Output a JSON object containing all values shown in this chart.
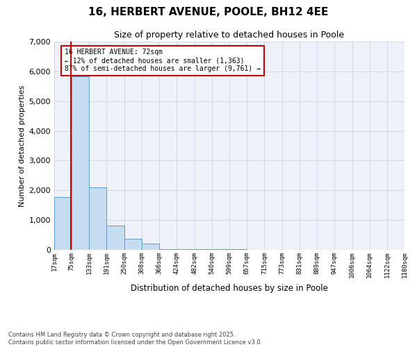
{
  "title": "16, HERBERT AVENUE, POOLE, BH12 4EE",
  "subtitle": "Size of property relative to detached houses in Poole",
  "xlabel": "Distribution of detached houses by size in Poole",
  "ylabel": "Number of detached properties",
  "property_size": 72,
  "annotation_title": "16 HERBERT AVENUE: 72sqm",
  "annotation_line1": "← 12% of detached houses are smaller (1,363)",
  "annotation_line2": "87% of semi-detached houses are larger (9,761) →",
  "footer1": "Contains HM Land Registry data © Crown copyright and database right 2025.",
  "footer2": "Contains public sector information licensed under the Open Government Licence v3.0.",
  "bin_edges": [
    17,
    75,
    133,
    191,
    250,
    308,
    366,
    424,
    482,
    540,
    599,
    657,
    715,
    773,
    831,
    889,
    947,
    1006,
    1064,
    1122,
    1180
  ],
  "bin_counts": [
    1780,
    5830,
    2090,
    820,
    370,
    210,
    30,
    20,
    18,
    15,
    12,
    10,
    8,
    7,
    6,
    6,
    5,
    5,
    5,
    5
  ],
  "bar_color": "#c5ddf0",
  "bar_edge_color": "#5b9ec9",
  "line_color": "#cc0000",
  "annotation_box_color": "#cc0000",
  "grid_color": "#cdd8e8",
  "background_color": "#eef2f8",
  "ylim": [
    0,
    7000
  ],
  "yticks": [
    0,
    1000,
    2000,
    3000,
    4000,
    5000,
    6000,
    7000
  ]
}
